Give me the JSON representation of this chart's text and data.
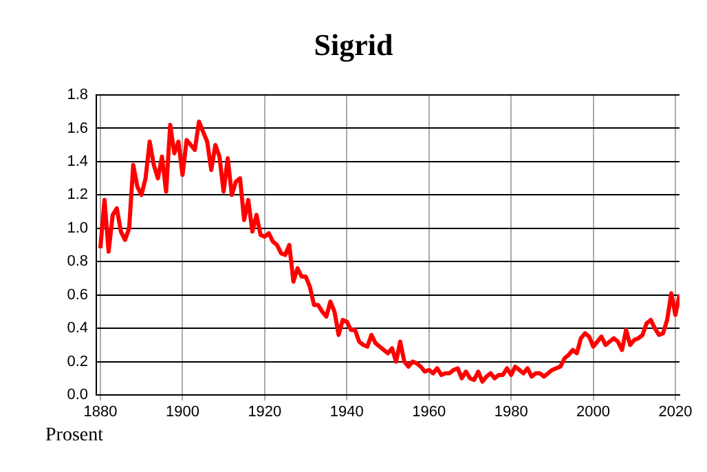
{
  "chart_data": {
    "type": "line",
    "title": "Sigrid",
    "ylabel": "Prosent",
    "x": [
      1880,
      1881,
      1882,
      1883,
      1884,
      1885,
      1886,
      1887,
      1888,
      1889,
      1890,
      1891,
      1892,
      1893,
      1894,
      1895,
      1896,
      1897,
      1898,
      1899,
      1900,
      1901,
      1902,
      1903,
      1904,
      1905,
      1906,
      1907,
      1908,
      1909,
      1910,
      1911,
      1912,
      1913,
      1914,
      1915,
      1916,
      1917,
      1918,
      1919,
      1920,
      1921,
      1922,
      1923,
      1924,
      1925,
      1926,
      1927,
      1928,
      1929,
      1930,
      1931,
      1932,
      1933,
      1934,
      1935,
      1936,
      1937,
      1938,
      1939,
      1940,
      1941,
      1942,
      1943,
      1944,
      1945,
      1946,
      1947,
      1948,
      1949,
      1950,
      1951,
      1952,
      1953,
      1954,
      1955,
      1956,
      1957,
      1958,
      1959,
      1960,
      1961,
      1962,
      1963,
      1964,
      1965,
      1966,
      1967,
      1968,
      1969,
      1970,
      1971,
      1972,
      1973,
      1974,
      1975,
      1976,
      1977,
      1978,
      1979,
      1980,
      1981,
      1982,
      1983,
      1984,
      1985,
      1986,
      1987,
      1988,
      1989,
      1990,
      1991,
      1992,
      1993,
      1994,
      1995,
      1996,
      1997,
      1998,
      1999,
      2000,
      2001,
      2002,
      2003,
      2004,
      2005,
      2006,
      2007,
      2008,
      2009,
      2010,
      2011,
      2012,
      2013,
      2014,
      2015,
      2016,
      2017,
      2018,
      2019,
      2020,
      2021
    ],
    "series": [
      {
        "color": "#ff0000",
        "values": [
          0.88,
          1.17,
          0.86,
          1.08,
          1.12,
          0.98,
          0.93,
          1.0,
          1.38,
          1.25,
          1.2,
          1.3,
          1.52,
          1.38,
          1.3,
          1.43,
          1.22,
          1.62,
          1.45,
          1.52,
          1.32,
          1.53,
          1.5,
          1.47,
          1.64,
          1.58,
          1.52,
          1.35,
          1.5,
          1.43,
          1.22,
          1.42,
          1.2,
          1.28,
          1.3,
          1.05,
          1.17,
          0.98,
          1.08,
          0.96,
          0.95,
          0.97,
          0.92,
          0.9,
          0.85,
          0.84,
          0.9,
          0.68,
          0.76,
          0.71,
          0.71,
          0.65,
          0.54,
          0.54,
          0.5,
          0.47,
          0.56,
          0.5,
          0.36,
          0.45,
          0.44,
          0.39,
          0.39,
          0.32,
          0.3,
          0.29,
          0.36,
          0.31,
          0.29,
          0.27,
          0.25,
          0.28,
          0.2,
          0.32,
          0.2,
          0.17,
          0.2,
          0.19,
          0.17,
          0.14,
          0.15,
          0.13,
          0.16,
          0.12,
          0.13,
          0.13,
          0.15,
          0.16,
          0.1,
          0.14,
          0.1,
          0.09,
          0.14,
          0.08,
          0.11,
          0.13,
          0.1,
          0.12,
          0.12,
          0.16,
          0.12,
          0.17,
          0.15,
          0.13,
          0.16,
          0.11,
          0.13,
          0.13,
          0.11,
          0.13,
          0.15,
          0.16,
          0.17,
          0.22,
          0.24,
          0.27,
          0.25,
          0.34,
          0.37,
          0.35,
          0.29,
          0.32,
          0.35,
          0.3,
          0.32,
          0.34,
          0.32,
          0.27,
          0.39,
          0.3,
          0.33,
          0.34,
          0.36,
          0.43,
          0.45,
          0.4,
          0.36,
          0.37,
          0.45,
          0.61,
          0.48,
          0.6
        ]
      }
    ],
    "xlim": [
      1879,
      2021
    ],
    "xticks": [
      1880,
      1900,
      1920,
      1940,
      1960,
      1980,
      2000,
      2020
    ],
    "ylim": [
      0,
      1.8
    ],
    "yticks": [
      {
        "value": 0,
        "label": "0.0"
      },
      {
        "value": 0.2,
        "label": "0.2"
      },
      {
        "value": 0.4,
        "label": "0.4"
      },
      {
        "value": 0.6,
        "label": "0.6"
      },
      {
        "value": 0.8,
        "label": "0.8"
      },
      {
        "value": 1,
        "label": "1.0"
      },
      {
        "value": 1.2,
        "label": "1.2"
      },
      {
        "value": 1.4,
        "label": "1.4"
      },
      {
        "value": 1.6,
        "label": "1.6"
      },
      {
        "value": 1.8,
        "label": "1.8"
      }
    ],
    "grid": true,
    "marker": "none",
    "line_style": "solid"
  }
}
